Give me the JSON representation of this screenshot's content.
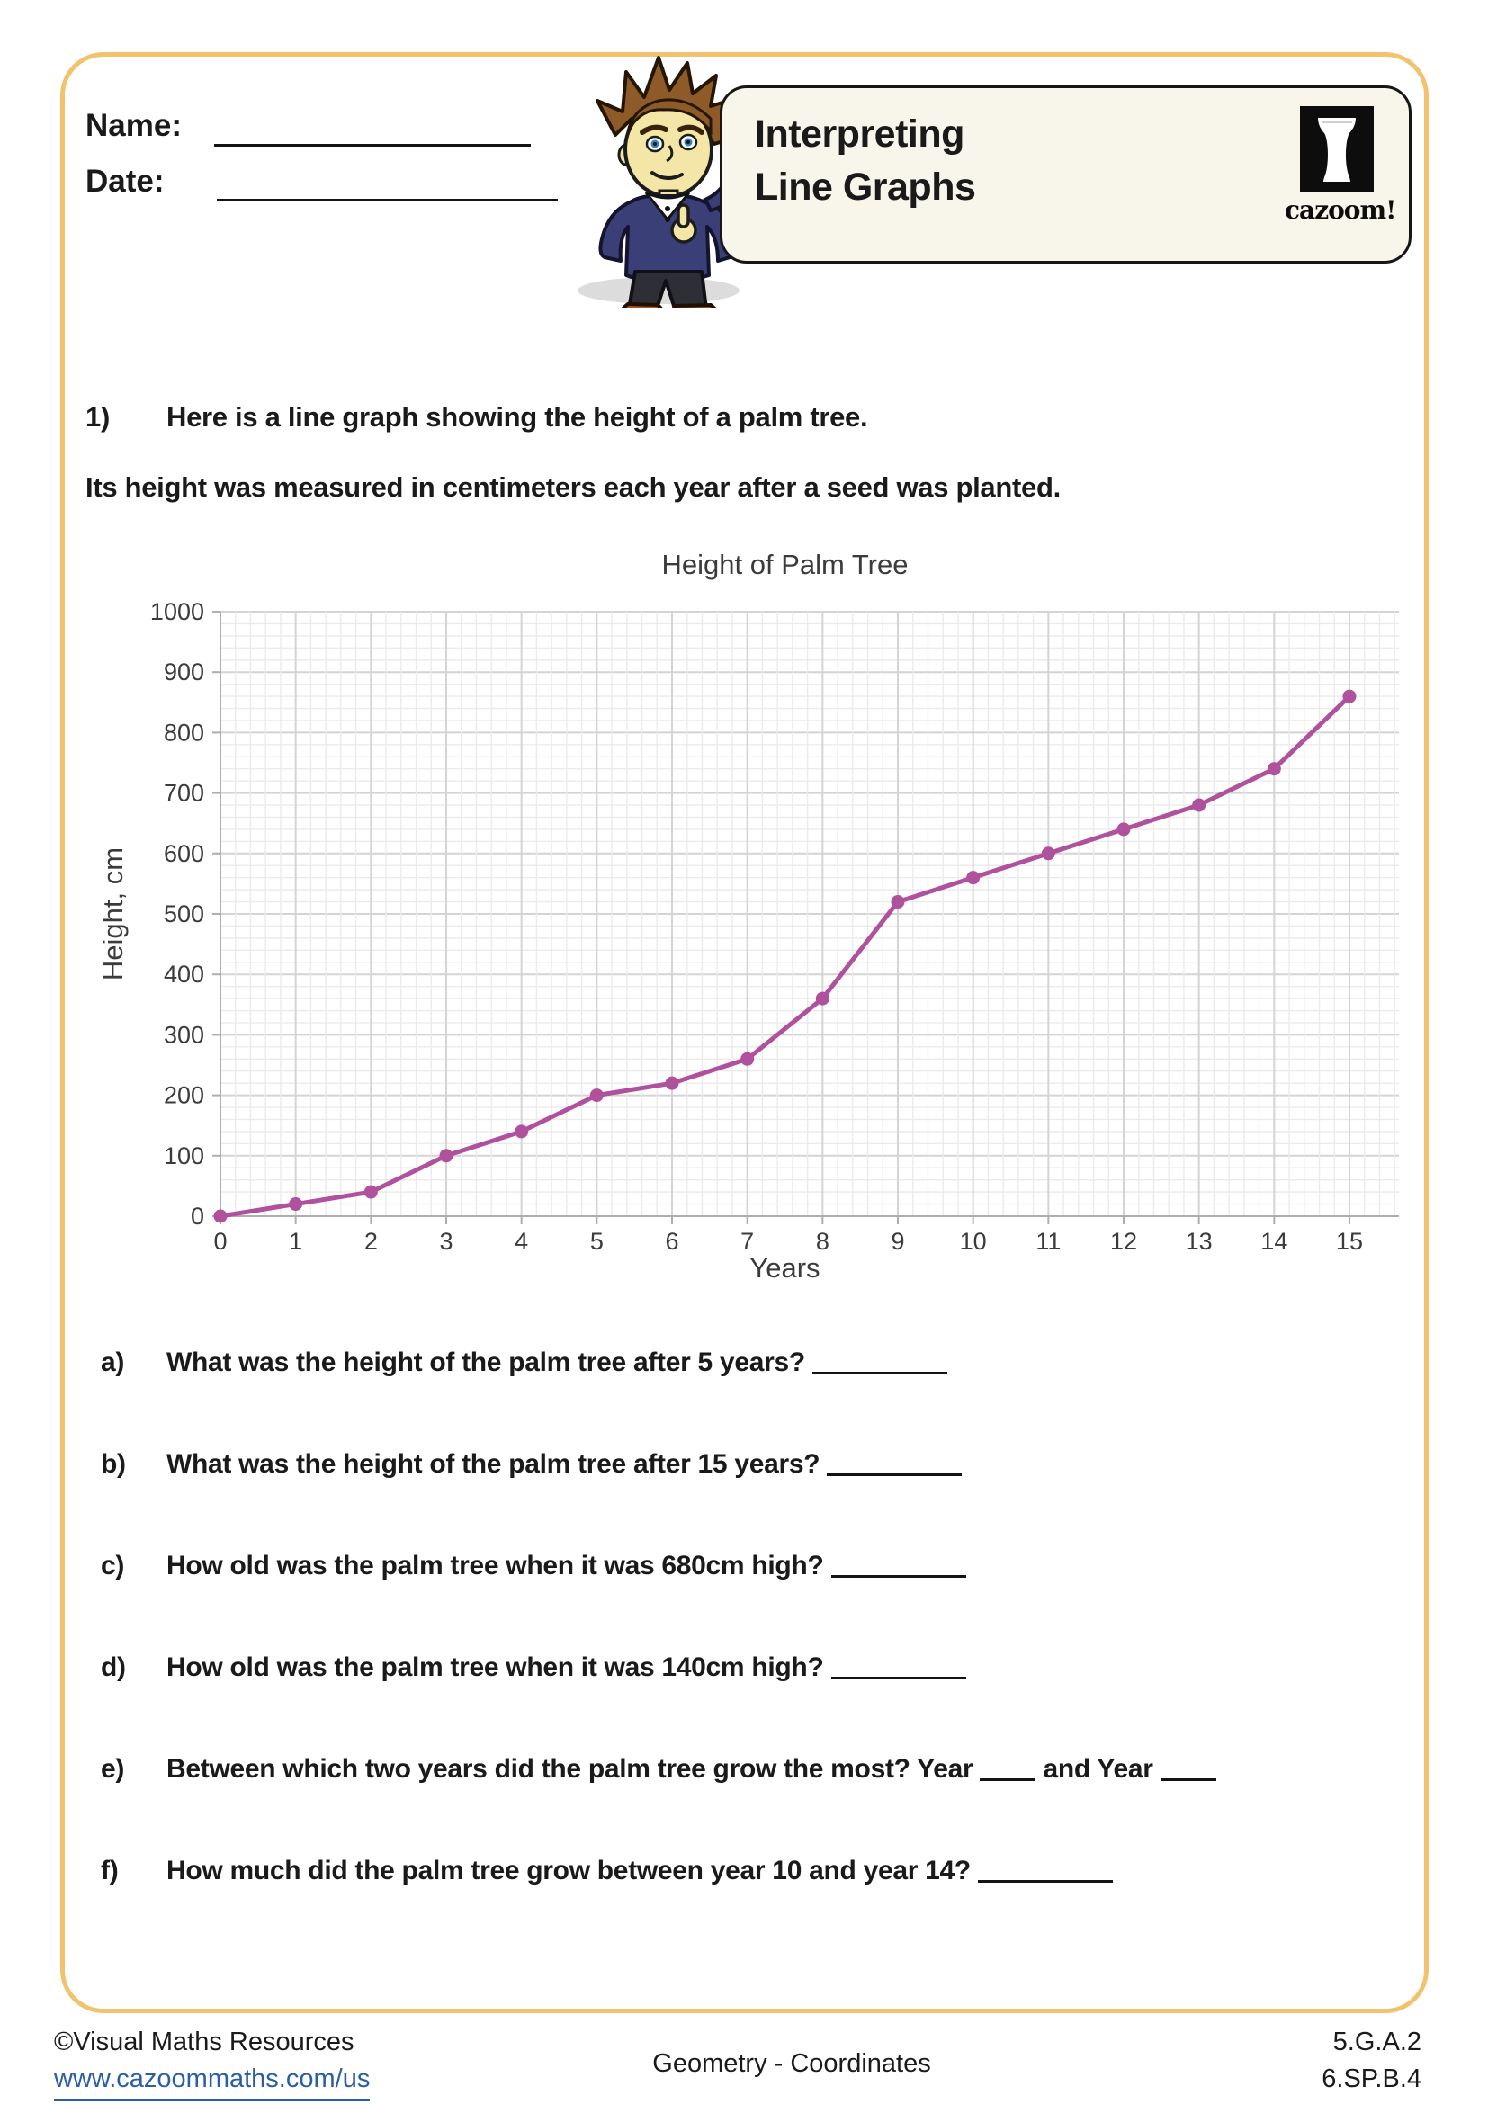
{
  "header": {
    "name_label": "Name:",
    "date_label": "Date:",
    "worksheet_title": [
      "Interpreting",
      "Line Graphs"
    ],
    "logo_text": "cazoom!"
  },
  "intro": {
    "number": "1)",
    "line1": "Here is a line graph showing the height of a palm tree.",
    "line2": "Its height was measured in centimeters each year after a seed was planted."
  },
  "chart_data": {
    "type": "line",
    "title": "Height of Palm Tree",
    "xlabel": "Years",
    "ylabel": "Height, cm",
    "x": [
      0,
      1,
      2,
      3,
      4,
      5,
      6,
      7,
      8,
      9,
      10,
      11,
      12,
      13,
      14,
      15
    ],
    "y": [
      0,
      20,
      40,
      100,
      140,
      200,
      220,
      260,
      360,
      520,
      560,
      600,
      640,
      680,
      740,
      860
    ],
    "xlim": [
      0,
      15
    ],
    "ylim": [
      0,
      1000
    ],
    "x_major_step": 1,
    "y_major_step": 100,
    "minor_per_major": 5,
    "grid": "on",
    "legend": "none",
    "line_color": "#b0519e",
    "major_grid_color": "#d4d4d4",
    "minor_grid_color": "#ebebeb",
    "axis_color": "#aeaeae"
  },
  "questions": [
    {
      "letter": "a)",
      "parts": [
        {
          "text": "What was the height of the palm tree after 5 years? "
        },
        {
          "blank": 150
        }
      ]
    },
    {
      "letter": "b)",
      "parts": [
        {
          "text": "What was the height of the palm tree after 15 years? "
        },
        {
          "blank": 150
        }
      ]
    },
    {
      "letter": "c)",
      "parts": [
        {
          "text": "How old was the palm tree when it was 680cm high? "
        },
        {
          "blank": 150
        }
      ]
    },
    {
      "letter": "d)",
      "parts": [
        {
          "text": "How old was the palm tree when it was 140cm high? "
        },
        {
          "blank": 150
        }
      ]
    },
    {
      "letter": "e)",
      "parts": [
        {
          "text": "Between which two years did the palm tree grow the most? Year "
        },
        {
          "blank": 62
        },
        {
          "text": " and Year "
        },
        {
          "blank": 62
        }
      ]
    },
    {
      "letter": "f)",
      "parts": [
        {
          "text": "How much did the palm tree grow between year 10 and year 14? "
        },
        {
          "blank": 150
        }
      ]
    }
  ],
  "footer": {
    "copyright": "©Visual Maths Resources",
    "url": "www.cazoommaths.com/us",
    "center": "Geometry - Coordinates",
    "codes": [
      "5.G.A.2",
      "6.SP.B.4"
    ]
  }
}
